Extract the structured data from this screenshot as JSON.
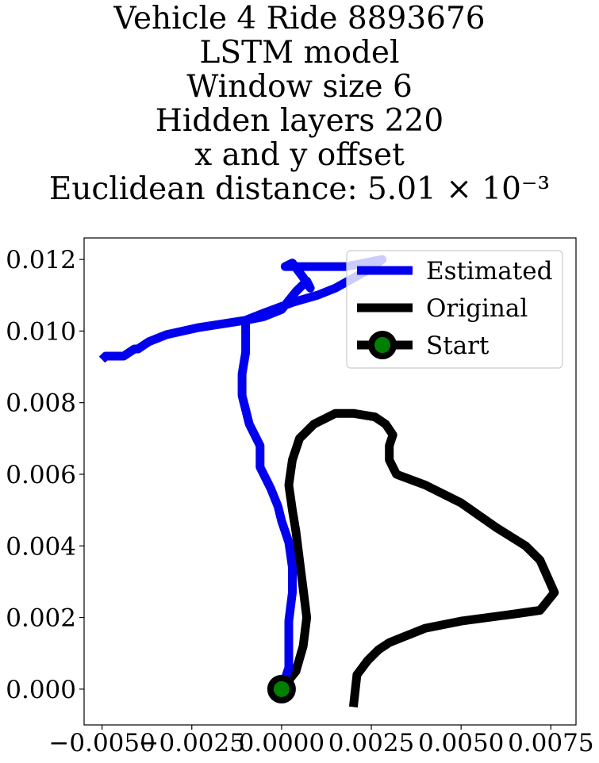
{
  "chart_data": {
    "type": "line",
    "title_lines": [
      "Vehicle 4 Ride 8893676",
      "LSTM model",
      "Window size 6",
      "Hidden layers 220",
      "x and y offset",
      "Euclidean distance: 5.01 × 10⁻³"
    ],
    "xlim": [
      -0.0055,
      0.0082
    ],
    "ylim": [
      -0.001,
      0.0126
    ],
    "x_ticks": [
      -0.005,
      -0.0025,
      0.0,
      0.0025,
      0.005,
      0.0075
    ],
    "x_tick_labels": [
      "−0.0050",
      "−0.0025",
      "0.0000",
      "0.0025",
      "0.0050",
      "0.0075"
    ],
    "y_ticks": [
      0.0,
      0.002,
      0.004,
      0.006,
      0.008,
      0.01,
      0.012
    ],
    "y_tick_labels": [
      "0.000",
      "0.002",
      "0.004",
      "0.006",
      "0.008",
      "0.010",
      "0.012"
    ],
    "legend_position": "upper-right",
    "series": [
      {
        "name": "Estimated",
        "color": "#0000ee",
        "x": [
          0.0,
          0.0002,
          0.0002,
          0.0002,
          0.0003,
          0.0003,
          0.0002,
          0.0,
          -0.0001,
          -0.0003,
          -0.0006,
          -0.0006,
          -0.0009,
          -0.0011,
          -0.0011,
          -0.001,
          -0.001,
          -0.001,
          -0.0005,
          0.0,
          0.0004,
          0.0007,
          0.0008,
          0.0006,
          0.0003,
          0.0001,
          0.0004,
          0.0012,
          0.0018,
          0.0023,
          0.0028,
          0.0024,
          0.0015,
          0.001,
          0.0003,
          -0.0005,
          -0.001,
          -0.0023,
          -0.0032,
          -0.0037,
          -0.004,
          -0.0041,
          -0.0044,
          -0.0046,
          -0.0049,
          -0.005
        ],
        "y": [
          0.0,
          0.0006,
          0.0012,
          0.0019,
          0.0027,
          0.0034,
          0.0041,
          0.0047,
          0.0051,
          0.0056,
          0.0062,
          0.0068,
          0.0074,
          0.0082,
          0.0088,
          0.0094,
          0.01,
          0.0103,
          0.0104,
          0.0106,
          0.0111,
          0.0114,
          0.0112,
          0.0115,
          0.0119,
          0.0118,
          0.0118,
          0.0118,
          0.0118,
          0.0119,
          0.012,
          0.0117,
          0.0112,
          0.011,
          0.0108,
          0.0105,
          0.0103,
          0.0101,
          0.0099,
          0.0097,
          0.0095,
          0.0095,
          0.0093,
          0.0093,
          0.0093,
          0.0092
        ]
      },
      {
        "name": "Original",
        "color": "#000000",
        "x": [
          0.0,
          0.0004,
          0.0006,
          0.0007,
          0.0006,
          0.0005,
          0.0004,
          0.0003,
          0.0002,
          0.0003,
          0.0005,
          0.0009,
          0.0015,
          0.002,
          0.0026,
          0.0029,
          0.0031,
          0.003,
          0.003,
          0.0032,
          0.004,
          0.005,
          0.006,
          0.0068,
          0.0072,
          0.0076,
          0.0072,
          0.0065,
          0.005,
          0.004,
          0.0035,
          0.003,
          0.0027,
          0.0024,
          0.0021,
          0.002
        ],
        "y": [
          0.0,
          0.0005,
          0.0012,
          0.002,
          0.0028,
          0.0036,
          0.0044,
          0.005,
          0.0057,
          0.0064,
          0.007,
          0.0074,
          0.0077,
          0.0077,
          0.0076,
          0.0074,
          0.0071,
          0.0068,
          0.0064,
          0.006,
          0.0057,
          0.0052,
          0.0045,
          0.004,
          0.0036,
          0.0027,
          0.0022,
          0.0021,
          0.0019,
          0.0017,
          0.0015,
          0.0013,
          0.0011,
          0.0008,
          0.0004,
          -0.0005
        ]
      }
    ],
    "start": {
      "name": "Start",
      "x": 0.0,
      "y": 0.0,
      "edge_color": "#000000",
      "face_color": "#008000"
    }
  }
}
